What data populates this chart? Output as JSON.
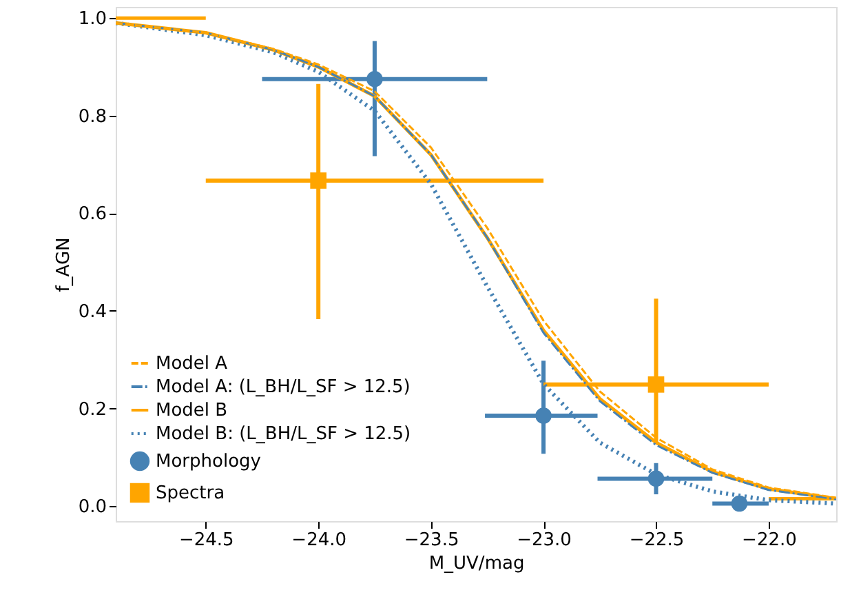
{
  "chart_data": {
    "type": "line",
    "xlabel": "M_UV/mag",
    "ylabel": "f_AGN",
    "xlim": [
      -24.9,
      -21.7
    ],
    "ylim": [
      -0.031,
      1.023
    ],
    "xticks": [
      -24.5,
      {
        "value": -24.0,
        "label": "−24.0"
      },
      -23.5,
      {
        "value": -23.0,
        "label": "−23.0"
      },
      -22.5,
      {
        "value": -22.0,
        "label": "−22.0"
      }
    ],
    "yticks": [
      {
        "value": 0.0,
        "label": "0.0"
      },
      0.2,
      0.4,
      0.6,
      0.8,
      {
        "value": 1.0,
        "label": "1.0"
      }
    ],
    "grid": false,
    "legend": "bottom left",
    "series": [
      {
        "name": "Model A",
        "line_style": "dashed",
        "color": "#ffa500",
        "x": [
          -24.9,
          -24.5,
          -24.2,
          -24.0,
          -23.75,
          -23.5,
          -23.25,
          -23.0,
          -22.75,
          -22.5,
          -22.25,
          -22.0,
          -21.7
        ],
        "values": [
          0.99,
          0.97,
          0.937,
          0.905,
          0.85,
          0.735,
          0.57,
          0.38,
          0.235,
          0.14,
          0.075,
          0.038,
          0.017
        ]
      },
      {
        "name": "Model A: (L_BH/L_SF > 12.5)",
        "line_style": "dashdot",
        "color": "#4682b4",
        "x": [
          -24.9,
          -24.5,
          -24.2,
          -24.0,
          -23.75,
          -23.5,
          -23.25,
          -23.0,
          -22.75,
          -22.5,
          -22.25,
          -22.0,
          -21.7
        ],
        "values": [
          0.99,
          0.97,
          0.935,
          0.9,
          0.84,
          0.72,
          0.55,
          0.355,
          0.215,
          0.125,
          0.068,
          0.033,
          0.014
        ]
      },
      {
        "name": "Model B",
        "line_style": "solid",
        "color": "#ffa500",
        "x": [
          -24.9,
          -24.5,
          -24.2,
          -24.0,
          -23.75,
          -23.5,
          -23.25,
          -23.0,
          -22.75,
          -22.5,
          -22.25,
          -22.0,
          -21.7
        ],
        "values": [
          0.99,
          0.97,
          0.935,
          0.9,
          0.84,
          0.72,
          0.55,
          0.36,
          0.22,
          0.13,
          0.07,
          0.035,
          0.015
        ]
      },
      {
        "name": "Model B: (L_BH/L_SF > 12.5)",
        "line_style": "dotted",
        "color": "#4682b4",
        "x": [
          -24.9,
          -24.5,
          -24.2,
          -24.0,
          -23.75,
          -23.5,
          -23.25,
          -23.0,
          -22.75,
          -22.5,
          -22.25,
          -22.0,
          -21.7
        ],
        "values": [
          0.99,
          0.965,
          0.93,
          0.89,
          0.81,
          0.66,
          0.45,
          0.25,
          0.13,
          0.065,
          0.03,
          0.012,
          0.005
        ]
      },
      {
        "name": "Morphology",
        "type": "scatter",
        "marker": "circle",
        "color": "#4682b4",
        "x": [
          -23.75,
          -23.0,
          -22.5,
          -22.13
        ],
        "values": [
          0.875,
          0.185,
          0.056,
          0.005
        ],
        "errors": [
          [
            0.717,
            0.953
          ],
          [
            0.107,
            0.298
          ],
          [
            0.024,
            0.088
          ],
          null
        ],
        "xerrors": [
          [
            -24.25,
            -23.25
          ],
          [
            -23.26,
            -22.76
          ],
          [
            -22.76,
            -22.25
          ],
          [
            -22.25,
            -22.0
          ]
        ]
      },
      {
        "name": "Spectra",
        "type": "scatter",
        "marker": "square",
        "color": "#ffa500",
        "x": [
          -24.0,
          -22.5
        ],
        "values": [
          0.667,
          0.249
        ],
        "errors": [
          [
            0.383,
            0.865
          ],
          [
            0.129,
            0.425
          ]
        ],
        "xerrors": [
          [
            -24.5,
            -23.0
          ],
          [
            -23.0,
            -22.0
          ]
        ]
      },
      {
        "line_style": "solid",
        "color": "#ffa500",
        "x": [
          -24.9,
          -24.5
        ],
        "values": [
          1.0,
          1.0
        ]
      },
      {
        "line_style": "solid",
        "color": "#ffa500",
        "x": [
          -22.0,
          -21.7
        ],
        "values": [
          0.015,
          0.015
        ]
      }
    ]
  }
}
